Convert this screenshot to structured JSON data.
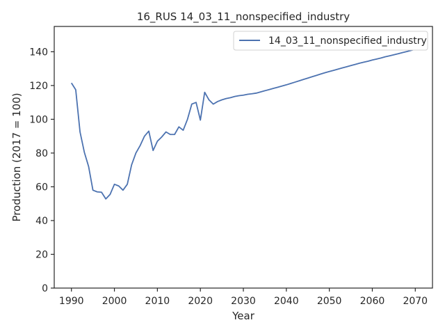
{
  "chart_data": {
    "type": "line",
    "title": "16_RUS 14_03_11_nonspecified_industry",
    "xlabel": "Year",
    "ylabel": "Production (2017 = 100)",
    "xlim": [
      1986,
      2074
    ],
    "ylim": [
      0,
      155
    ],
    "xticks": [
      1990,
      2000,
      2010,
      2020,
      2030,
      2040,
      2050,
      2060,
      2070
    ],
    "yticks": [
      0,
      20,
      40,
      60,
      80,
      100,
      120,
      140
    ],
    "grid": false,
    "legend_position": "top-right",
    "series": [
      {
        "name": "14_03_11_nonspecified_industry",
        "color": "#4c72b0",
        "x": [
          1990,
          1991,
          1992,
          1993,
          1994,
          1995,
          1996,
          1997,
          1998,
          1999,
          2000,
          2001,
          2002,
          2003,
          2004,
          2005,
          2006,
          2007,
          2008,
          2009,
          2010,
          2011,
          2012,
          2013,
          2014,
          2015,
          2016,
          2017,
          2018,
          2019,
          2020,
          2021,
          2022,
          2023,
          2024,
          2025,
          2026,
          2027,
          2028,
          2029,
          2030,
          2031,
          2032,
          2033,
          2034,
          2035,
          2036,
          2037,
          2038,
          2039,
          2040,
          2041,
          2042,
          2043,
          2044,
          2045,
          2046,
          2047,
          2048,
          2049,
          2050,
          2051,
          2052,
          2053,
          2054,
          2055,
          2056,
          2057,
          2058,
          2059,
          2060,
          2061,
          2062,
          2063,
          2064,
          2065,
          2066,
          2067,
          2068,
          2069,
          2070
        ],
        "values": [
          121.5,
          117.5,
          92.5,
          80.5,
          72,
          58,
          57,
          56.8,
          52.8,
          55.5,
          61.5,
          60.5,
          58,
          61.5,
          73,
          80,
          84.5,
          90,
          93,
          81.5,
          87,
          89.5,
          92.5,
          91,
          91,
          95.5,
          93.5,
          100,
          109,
          110,
          99.5,
          116,
          111.5,
          109,
          110.5,
          111.5,
          112.3,
          112.8,
          113.5,
          114,
          114.3,
          114.8,
          115.1,
          115.5,
          116.2,
          116.9,
          117.6,
          118.3,
          119,
          119.7,
          120.4,
          121.2,
          122,
          122.8,
          123.6,
          124.4,
          125.2,
          126,
          126.8,
          127.6,
          128.3,
          129,
          129.7,
          130.4,
          131.1,
          131.8,
          132.5,
          133.2,
          133.8,
          134.4,
          135.1,
          135.7,
          136.3,
          137,
          137.6,
          138.2,
          138.8,
          139.5,
          140.1,
          140.8,
          141.5
        ]
      }
    ]
  }
}
